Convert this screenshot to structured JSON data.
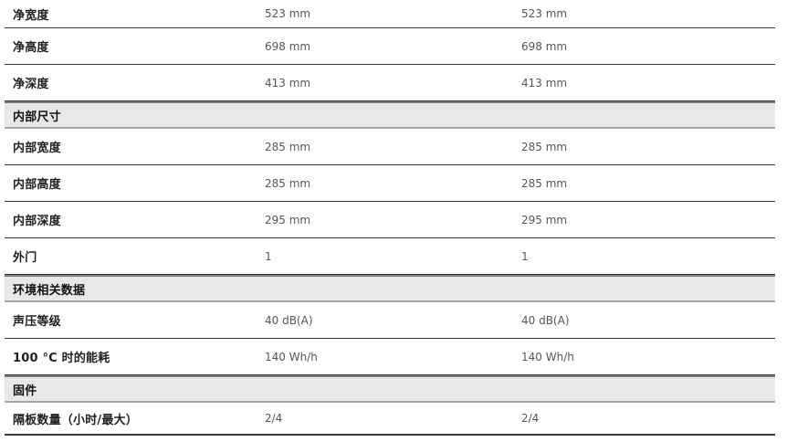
{
  "table": {
    "rows": [
      {
        "type": "data",
        "label": "净宽度",
        "values": [
          "523 mm",
          "523 mm"
        ]
      },
      {
        "type": "data",
        "label": "净高度",
        "values": [
          "698 mm",
          "698 mm"
        ]
      },
      {
        "type": "data",
        "label": "净深度",
        "values": [
          "413 mm",
          "413 mm"
        ]
      },
      {
        "type": "section",
        "label": "内部尺寸"
      },
      {
        "type": "data",
        "label": "内部宽度",
        "values": [
          "285 mm",
          "285 mm"
        ]
      },
      {
        "type": "data",
        "label": "内部高度",
        "values": [
          "285 mm",
          "285 mm"
        ]
      },
      {
        "type": "data",
        "label": "内部深度",
        "values": [
          "295 mm",
          "295 mm"
        ]
      },
      {
        "type": "data",
        "label": "外门",
        "values": [
          "1",
          "1"
        ]
      },
      {
        "type": "section",
        "label": "环境相关数据"
      },
      {
        "type": "data",
        "label": "声压等级",
        "values": [
          "40 dB(A)",
          "40 dB(A)"
        ]
      },
      {
        "type": "data",
        "label": "100 °C 时的能耗",
        "values": [
          "140 Wh/h",
          "140 Wh/h"
        ]
      },
      {
        "type": "section",
        "label": "固件"
      },
      {
        "type": "data",
        "label": "隔板数量（小时/最大）",
        "values": [
          "2/4",
          "2/4"
        ]
      }
    ],
    "colors": {
      "row_divider": "#333333",
      "section_top_border": "#7d7d7d",
      "section_bottom_border": "#a6a6a6",
      "section_background": "#e8e8e8",
      "label_text": "#1f1f1f",
      "value_text": "#55565a"
    }
  }
}
